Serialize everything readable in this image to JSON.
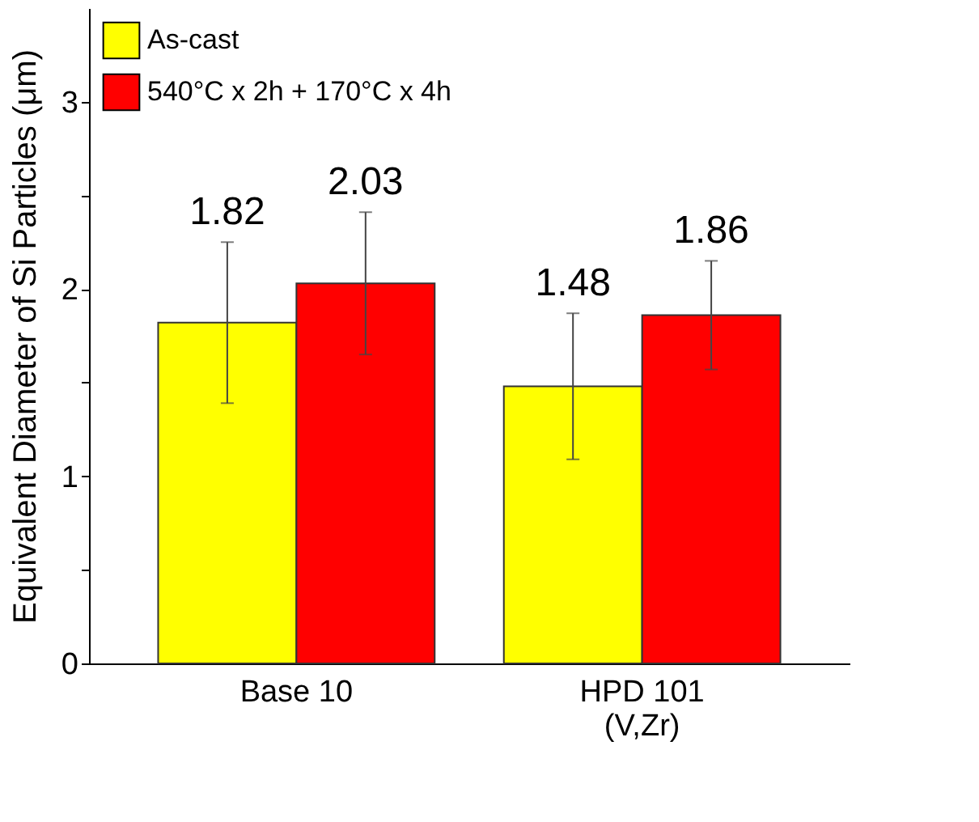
{
  "chart_data": {
    "type": "bar",
    "ylabel": "Equivalent Diameter of Si Particles (μm)",
    "categories": [
      "Base 10",
      "HPD 101\n(V,Zr)"
    ],
    "series": [
      {
        "name": "As-cast",
        "color": "#ffff00",
        "values": [
          1.82,
          1.48
        ],
        "errors": [
          0.43,
          0.39
        ]
      },
      {
        "name": "540°C x 2h + 170°C x 4h",
        "color": "#ff0000",
        "values": [
          2.03,
          1.86
        ],
        "errors": [
          0.38,
          0.29
        ]
      }
    ],
    "ylim": [
      0,
      3.5
    ],
    "yticks": [
      0,
      {
        "value": 0.5,
        "label": null
      },
      1,
      {
        "value": 1.5,
        "label": null
      },
      2,
      {
        "value": 2.5,
        "label": null
      },
      3
    ],
    "data_labels": true,
    "legend": "top left",
    "grid": false
  }
}
